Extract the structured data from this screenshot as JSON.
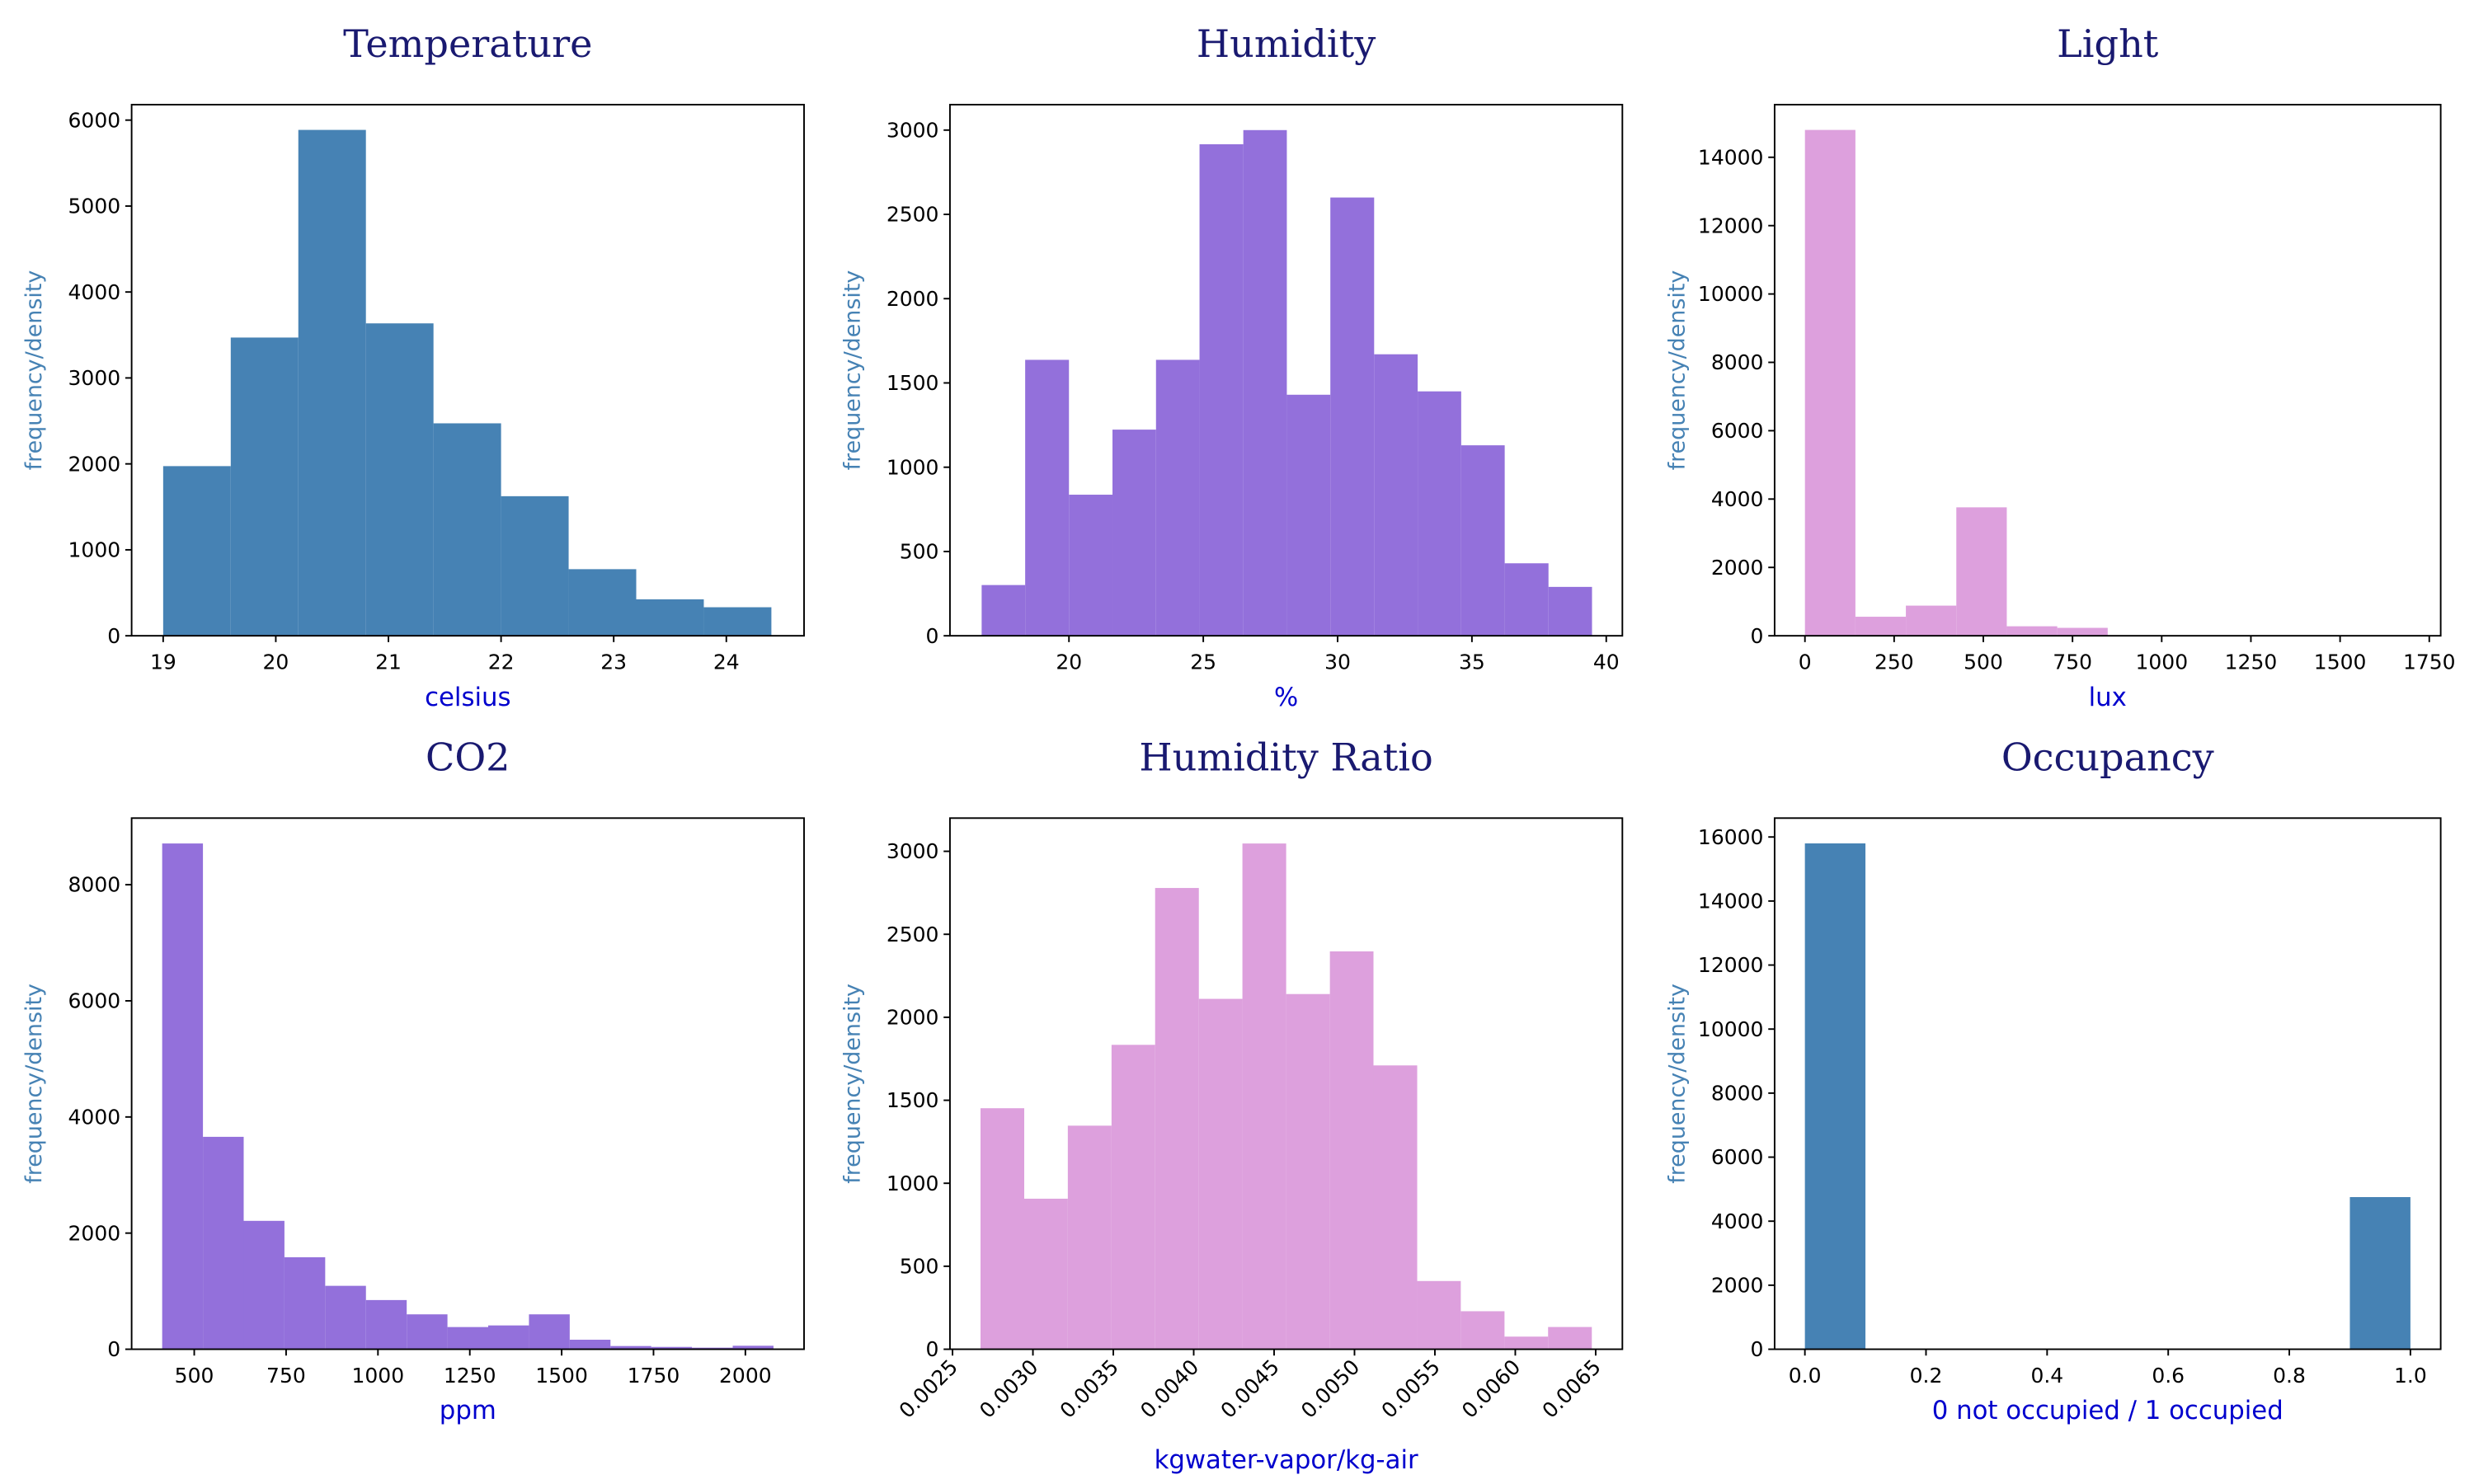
{
  "chart_data": [
    {
      "type": "histogram",
      "title": "Temperature",
      "xlabel": "celsius",
      "ylabel": "frequency/density",
      "color": "#4682b4",
      "bins": [
        19,
        19.6,
        20.2,
        20.8,
        21.4,
        22,
        22.6,
        23.2,
        23.8,
        24.4
      ],
      "values": [
        1974,
        3470,
        5886,
        3635,
        2472,
        1624,
        775,
        424,
        332
      ],
      "xlim": [
        18.72,
        24.69
      ],
      "ylim": [
        0,
        6180
      ],
      "xticks": [
        19,
        20,
        21,
        22,
        23,
        24
      ],
      "yticks": [
        0,
        1000,
        2000,
        3000,
        4000,
        5000,
        6000
      ]
    },
    {
      "type": "histogram",
      "title": "Humidity",
      "xlabel": "%",
      "ylabel": "frequency/density",
      "color": "#9370db",
      "bins": [
        16.75,
        18.37,
        20.0,
        21.62,
        23.24,
        24.86,
        26.49,
        28.11,
        29.73,
        31.36,
        32.98,
        34.6,
        36.22,
        37.85,
        39.47
      ],
      "values": [
        301,
        1637,
        837,
        1223,
        1637,
        2916,
        3000,
        1430,
        2600,
        1670,
        1450,
        1130,
        430,
        290
      ],
      "xlim": [
        15.57,
        40.6
      ],
      "ylim": [
        0,
        3151
      ],
      "xticks": [
        20,
        25,
        30,
        35,
        40
      ],
      "yticks": [
        0,
        500,
        1000,
        1500,
        2000,
        2500,
        3000
      ]
    },
    {
      "type": "histogram",
      "title": "Light",
      "xlabel": "lux",
      "ylabel": "frequency/density",
      "color": "#dda0dd",
      "bins": [
        0,
        141.44,
        282.88,
        424.31,
        565.75,
        707.19,
        848.63,
        990.06,
        1131.5,
        1272.94,
        1414.38,
        1555.81,
        1697.25
      ],
      "values": [
        14800,
        557,
        882,
        3758,
        278,
        232,
        15,
        5,
        3,
        2,
        1,
        1
      ],
      "xlim": [
        -85,
        1782
      ],
      "ylim": [
        0,
        15540
      ],
      "xticks": [
        0,
        250,
        500,
        750,
        1000,
        1250,
        1500,
        1750
      ],
      "yticks": [
        0,
        2000,
        4000,
        6000,
        8000,
        10000,
        12000,
        14000
      ]
    },
    {
      "type": "histogram",
      "title": "CO2",
      "xlabel": "ppm",
      "ylabel": "frequency/density",
      "color": "#9370db",
      "bins": [
        412.75,
        523.67,
        634.58,
        745.5,
        856.42,
        967.33,
        1078.25,
        1189.17,
        1300.08,
        1411.0,
        1521.92,
        1632.83,
        1743.75,
        1854.67,
        1965.58,
        2076.5
      ],
      "values": [
        8710,
        3658,
        2211,
        1584,
        1092,
        847,
        601,
        382,
        410,
        601,
        164,
        55,
        40,
        27,
        60
      ],
      "xlim": [
        329.6,
        2159.7
      ],
      "ylim": [
        0,
        9147
      ],
      "xticks": [
        500,
        750,
        1000,
        1250,
        1500,
        1750,
        2000
      ],
      "yticks": [
        0,
        2000,
        4000,
        6000,
        8000
      ]
    },
    {
      "type": "histogram",
      "title": "Humidity Ratio",
      "xlabel": "kgwater-vapor/kg-air",
      "ylabel": "frequency/density",
      "color": "#dda0dd",
      "bins": [
        0.002674,
        0.002946,
        0.003217,
        0.003489,
        0.00376,
        0.004032,
        0.004303,
        0.004575,
        0.004847,
        0.005118,
        0.00539,
        0.005661,
        0.005933,
        0.006204,
        0.006476
      ],
      "values": [
        1452,
        907,
        1347,
        1834,
        2779,
        2111,
        3047,
        2140,
        2397,
        1710,
        411,
        229,
        76,
        134
      ],
      "xlim": [
        0.002484,
        0.006666
      ],
      "ylim": [
        0,
        3200
      ],
      "xtick_rotation": 45,
      "xticks": [
        0.0025,
        {
          "value": 0.003,
          "label": "0.0030"
        },
        0.0035,
        {
          "value": 0.004,
          "label": "0.0040"
        },
        0.0045,
        {
          "value": 0.005,
          "label": "0.0050"
        },
        0.0055,
        {
          "value": 0.006,
          "label": "0.0060"
        },
        0.0065
      ],
      "yticks": [
        0,
        500,
        1000,
        1500,
        2000,
        2500,
        3000
      ]
    },
    {
      "type": "histogram",
      "title": "Occupancy",
      "xlabel": "0 not occupied / 1 occupied",
      "ylabel": "frequency/density",
      "color": "#4682b4",
      "bins": [
        0,
        0.1,
        0.2,
        0.3,
        0.4,
        0.5,
        0.6,
        0.7,
        0.8,
        0.9,
        1
      ],
      "values": [
        15800,
        0,
        0,
        0,
        0,
        0,
        0,
        0,
        0,
        4752
      ],
      "xlim": [
        -0.05,
        1.05
      ],
      "ylim": [
        0,
        16590
      ],
      "xticks": [
        {
          "value": 0,
          "label": "0.0"
        },
        {
          "value": 0.2,
          "label": "0.2"
        },
        {
          "value": 0.4,
          "label": "0.4"
        },
        {
          "value": 0.6,
          "label": "0.6"
        },
        {
          "value": 0.8,
          "label": "0.8"
        },
        {
          "value": 1,
          "label": "1.0"
        }
      ],
      "yticks": [
        0,
        2000,
        4000,
        6000,
        8000,
        10000,
        12000,
        14000,
        16000
      ]
    }
  ]
}
